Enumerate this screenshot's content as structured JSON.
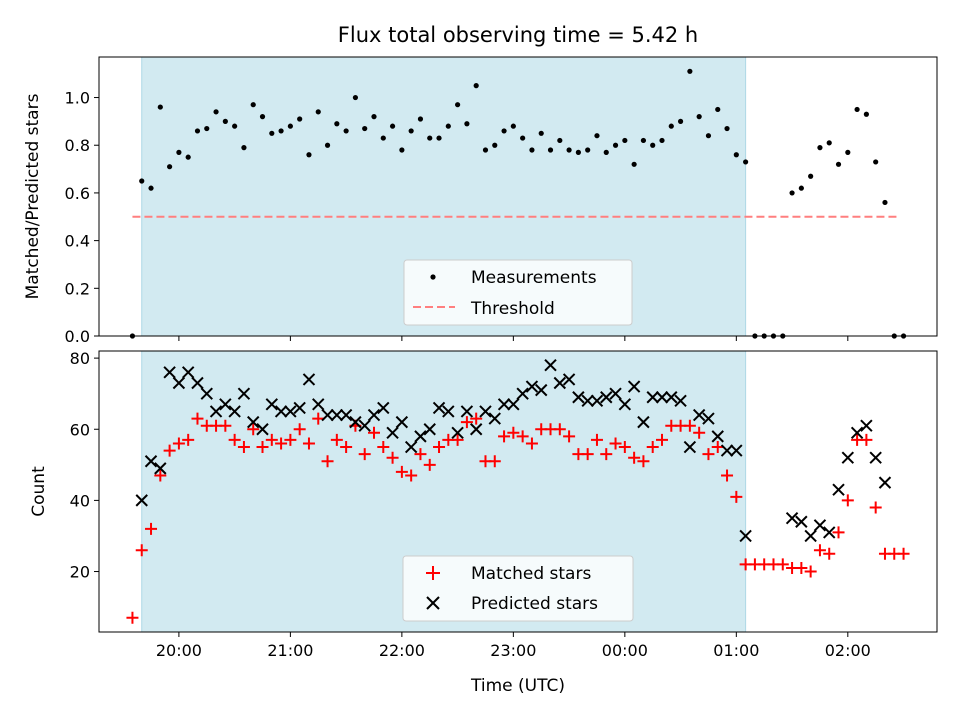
{
  "figure": {
    "title": "Flux total observing time = 5.42 h",
    "xlabel": "Time (UTC)"
  },
  "colors": {
    "window_fill": "#add8e6",
    "measurement": "#000000",
    "threshold": "#ff7f7f",
    "matched": "#ff0000",
    "predicted": "#000000"
  },
  "chart_data": [
    {
      "type": "scatter",
      "ylabel": "Matched/Predicted stars",
      "xlim": [
        "19:17",
        "02:48"
      ],
      "ylim": [
        0,
        1.17
      ],
      "yticks": [
        0.0,
        0.2,
        0.4,
        0.6,
        0.8,
        1.0
      ],
      "ytick_labels": [
        "0.0",
        "0.2",
        "0.4",
        "0.6",
        "0.8",
        "1.0"
      ],
      "shaded_window": [
        "19:40",
        "01:05"
      ],
      "threshold": {
        "name": "Threshold",
        "value": 0.5,
        "x_range": [
          "19:35",
          "02:27"
        ]
      },
      "legend": {
        "position": "lower center",
        "entries": [
          "Measurements",
          "Threshold"
        ]
      },
      "series": [
        {
          "name": "Measurements",
          "marker": "dot",
          "x": [
            "19:35",
            "19:40",
            "19:45",
            "19:50",
            "19:55",
            "20:00",
            "20:05",
            "20:10",
            "20:15",
            "20:20",
            "20:25",
            "20:30",
            "20:35",
            "20:40",
            "20:45",
            "20:50",
            "20:55",
            "21:00",
            "21:05",
            "21:10",
            "21:15",
            "21:20",
            "21:25",
            "21:30",
            "21:35",
            "21:40",
            "21:45",
            "21:50",
            "21:55",
            "22:00",
            "22:05",
            "22:10",
            "22:15",
            "22:20",
            "22:25",
            "22:30",
            "22:35",
            "22:40",
            "22:45",
            "22:50",
            "22:55",
            "23:00",
            "23:05",
            "23:10",
            "23:15",
            "23:20",
            "23:25",
            "23:30",
            "23:35",
            "23:40",
            "23:45",
            "23:50",
            "23:55",
            "00:00",
            "00:05",
            "00:10",
            "00:15",
            "00:20",
            "00:25",
            "00:30",
            "00:35",
            "00:40",
            "00:45",
            "00:50",
            "00:55",
            "01:00",
            "01:05",
            "01:10",
            "01:15",
            "01:20",
            "01:25",
            "01:30",
            "01:35",
            "01:40",
            "01:45",
            "01:50",
            "01:55",
            "02:00",
            "02:05",
            "02:10",
            "02:15",
            "02:20",
            "02:25",
            "02:30"
          ],
          "y": [
            0.0,
            0.65,
            0.62,
            0.96,
            0.71,
            0.77,
            0.75,
            0.86,
            0.87,
            0.94,
            0.9,
            0.88,
            0.79,
            0.97,
            0.92,
            0.85,
            0.86,
            0.88,
            0.91,
            0.76,
            0.94,
            0.8,
            0.89,
            0.86,
            1.0,
            0.87,
            0.92,
            0.83,
            0.88,
            0.78,
            0.86,
            0.91,
            0.83,
            0.83,
            0.88,
            0.97,
            0.89,
            1.05,
            0.78,
            0.8,
            0.86,
            0.88,
            0.83,
            0.78,
            0.85,
            0.78,
            0.82,
            0.78,
            0.77,
            0.78,
            0.84,
            0.77,
            0.8,
            0.82,
            0.72,
            0.82,
            0.8,
            0.82,
            0.88,
            0.9,
            1.11,
            0.92,
            0.84,
            0.95,
            0.87,
            0.76,
            0.73,
            0.0,
            0.0,
            0.0,
            0.0,
            0.6,
            0.62,
            0.67,
            0.79,
            0.81,
            0.72,
            0.77,
            0.95,
            0.93,
            0.73,
            0.56,
            0.0,
            0.0
          ]
        }
      ]
    },
    {
      "type": "scatter",
      "ylabel": "Count",
      "xlim": [
        "19:17",
        "02:48"
      ],
      "ylim": [
        3,
        82
      ],
      "yticks": [
        20,
        40,
        60,
        80
      ],
      "ytick_labels": [
        "20",
        "40",
        "60",
        "80"
      ],
      "xticks": [
        "20:00",
        "21:00",
        "22:00",
        "23:00",
        "00:00",
        "01:00",
        "02:00"
      ],
      "shaded_window": [
        "19:40",
        "01:05"
      ],
      "legend": {
        "position": "lower center",
        "entries": [
          "Matched stars",
          "Predicted stars"
        ]
      },
      "series": [
        {
          "name": "Matched stars",
          "marker": "plus",
          "x": [
            "19:35",
            "19:40",
            "19:45",
            "19:50",
            "19:55",
            "20:00",
            "20:05",
            "20:10",
            "20:15",
            "20:20",
            "20:25",
            "20:30",
            "20:35",
            "20:40",
            "20:45",
            "20:50",
            "20:55",
            "21:00",
            "21:05",
            "21:10",
            "21:15",
            "21:20",
            "21:25",
            "21:30",
            "21:35",
            "21:40",
            "21:45",
            "21:50",
            "21:55",
            "22:00",
            "22:05",
            "22:10",
            "22:15",
            "22:20",
            "22:25",
            "22:30",
            "22:35",
            "22:40",
            "22:45",
            "22:50",
            "22:55",
            "23:00",
            "23:05",
            "23:10",
            "23:15",
            "23:20",
            "23:25",
            "23:30",
            "23:35",
            "23:40",
            "23:45",
            "23:50",
            "23:55",
            "00:00",
            "00:05",
            "00:10",
            "00:15",
            "00:20",
            "00:25",
            "00:30",
            "00:35",
            "00:40",
            "00:45",
            "00:50",
            "00:55",
            "01:00",
            "01:05",
            "01:10",
            "01:15",
            "01:20",
            "01:25",
            "01:30",
            "01:35",
            "01:40",
            "01:45",
            "01:50",
            "01:55",
            "02:00",
            "02:05",
            "02:10",
            "02:15",
            "02:20",
            "02:25",
            "02:30"
          ],
          "y": [
            7,
            26,
            32,
            47,
            54,
            56,
            57,
            63,
            61,
            61,
            61,
            57,
            55,
            60,
            55,
            57,
            56,
            57,
            60,
            56,
            63,
            51,
            57,
            55,
            61,
            53,
            59,
            55,
            52,
            48,
            47,
            53,
            50,
            55,
            57,
            57,
            62,
            63,
            51,
            51,
            58,
            59,
            58,
            56,
            60,
            60,
            60,
            58,
            53,
            53,
            57,
            53,
            56,
            55,
            52,
            51,
            55,
            57,
            61,
            61,
            61,
            59,
            53,
            55,
            47,
            41,
            22,
            22,
            22,
            22,
            22,
            21,
            21,
            20,
            26,
            25,
            31,
            40,
            57,
            57,
            38,
            25,
            25,
            25
          ]
        },
        {
          "name": "Predicted stars",
          "marker": "x",
          "x": [
            "19:40",
            "19:45",
            "19:50",
            "19:55",
            "20:00",
            "20:05",
            "20:10",
            "20:15",
            "20:20",
            "20:25",
            "20:30",
            "20:35",
            "20:40",
            "20:45",
            "20:50",
            "20:55",
            "21:00",
            "21:05",
            "21:10",
            "21:15",
            "21:20",
            "21:25",
            "21:30",
            "21:35",
            "21:40",
            "21:45",
            "21:50",
            "21:55",
            "22:00",
            "22:05",
            "22:10",
            "22:15",
            "22:20",
            "22:25",
            "22:30",
            "22:35",
            "22:40",
            "22:45",
            "22:50",
            "22:55",
            "23:00",
            "23:05",
            "23:10",
            "23:15",
            "23:20",
            "23:25",
            "23:30",
            "23:35",
            "23:40",
            "23:45",
            "23:50",
            "23:55",
            "00:00",
            "00:05",
            "00:10",
            "00:15",
            "00:20",
            "00:25",
            "00:30",
            "00:35",
            "00:40",
            "00:45",
            "00:50",
            "00:55",
            "01:00",
            "01:05",
            "01:30",
            "01:35",
            "01:40",
            "01:45",
            "01:50",
            "01:55",
            "02:00",
            "02:05",
            "02:10",
            "02:15",
            "02:20"
          ],
          "y": [
            40,
            51,
            49,
            76,
            73,
            76,
            73,
            70,
            65,
            67,
            65,
            70,
            62,
            60,
            67,
            65,
            65,
            66,
            74,
            67,
            64,
            64,
            64,
            62,
            61,
            64,
            66,
            59,
            62,
            55,
            58,
            60,
            66,
            65,
            59,
            65,
            60,
            65,
            63,
            67,
            67,
            70,
            72,
            71,
            78,
            73,
            74,
            69,
            68,
            68,
            69,
            70,
            67,
            72,
            62,
            69,
            69,
            69,
            68,
            55,
            64,
            63,
            58,
            54,
            54,
            30,
            35,
            34,
            30,
            33,
            31,
            43,
            52,
            59,
            61,
            52,
            45
          ]
        }
      ]
    }
  ]
}
